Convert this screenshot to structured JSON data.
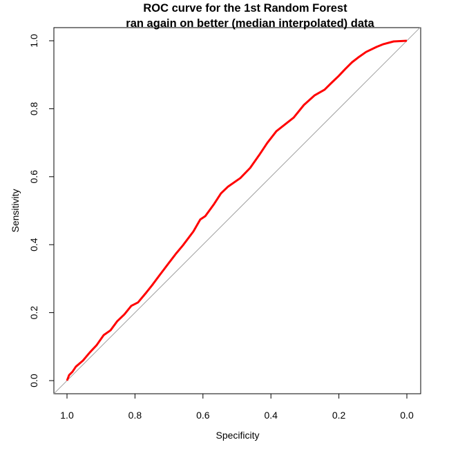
{
  "chart_data": {
    "type": "line",
    "title": "ROC curve for the 1st Random Forest",
    "subtitle": "ran again on better (median interpolated) data",
    "xlabel": "Specificity",
    "ylabel": "Sensitivity",
    "xlim": [
      1.0,
      0.0
    ],
    "ylim": [
      0.0,
      1.0
    ],
    "x_reversed": true,
    "grid": false,
    "legend": null,
    "x_ticks": [
      "1.0",
      "0.8",
      "0.6",
      "0.4",
      "0.2",
      "0.0"
    ],
    "y_ticks": [
      "0.0",
      "0.2",
      "0.4",
      "0.6",
      "0.8",
      "1.0"
    ],
    "reference_line": {
      "from": [
        1.0,
        0.0
      ],
      "to": [
        0.0,
        1.0
      ],
      "color": "#a0a0a0"
    },
    "series": [
      {
        "name": "ROC",
        "color": "#ff0000",
        "specificity": [
          1.0,
          0.994,
          0.984,
          0.974,
          0.953,
          0.933,
          0.913,
          0.892,
          0.872,
          0.852,
          0.831,
          0.811,
          0.791,
          0.766,
          0.75,
          0.73,
          0.699,
          0.679,
          0.659,
          0.628,
          0.608,
          0.593,
          0.567,
          0.547,
          0.526,
          0.49,
          0.461,
          0.435,
          0.411,
          0.384,
          0.333,
          0.303,
          0.272,
          0.242,
          0.222,
          0.201,
          0.181,
          0.161,
          0.14,
          0.12,
          0.089,
          0.069,
          0.039,
          0.0
        ],
        "sensitivity": [
          0.0,
          0.016,
          0.026,
          0.041,
          0.059,
          0.083,
          0.104,
          0.134,
          0.148,
          0.175,
          0.195,
          0.22,
          0.23,
          0.26,
          0.28,
          0.307,
          0.348,
          0.374,
          0.398,
          0.439,
          0.474,
          0.484,
          0.52,
          0.551,
          0.571,
          0.596,
          0.626,
          0.663,
          0.699,
          0.734,
          0.774,
          0.811,
          0.839,
          0.856,
          0.876,
          0.896,
          0.917,
          0.937,
          0.953,
          0.967,
          0.982,
          0.99,
          0.998,
          1.0
        ]
      }
    ]
  }
}
